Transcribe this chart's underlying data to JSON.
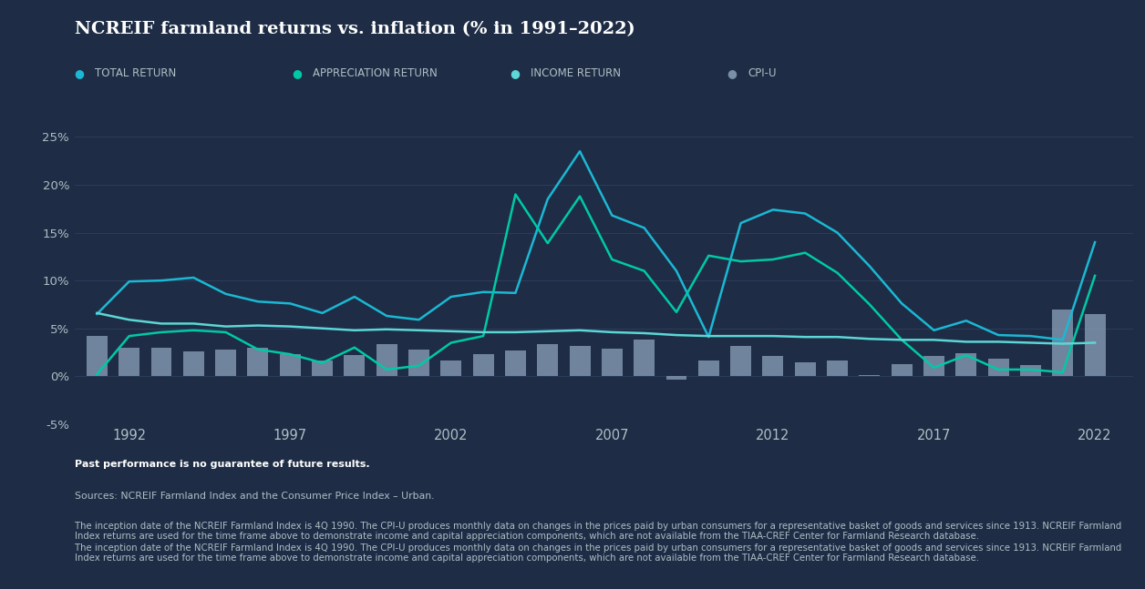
{
  "title": "NCREIF farmland returns vs. inflation (% in 1991–2022)",
  "background_color": "#1e2d45",
  "grid_color": "#2e4060",
  "text_color": "#ffffff",
  "legend_text_color": "#b0bec5",
  "years": [
    1991,
    1992,
    1993,
    1994,
    1995,
    1996,
    1997,
    1998,
    1999,
    2000,
    2001,
    2002,
    2003,
    2004,
    2005,
    2006,
    2007,
    2008,
    2009,
    2010,
    2011,
    2012,
    2013,
    2014,
    2015,
    2016,
    2017,
    2018,
    2019,
    2020,
    2021,
    2022
  ],
  "total_return": [
    6.5,
    9.9,
    10.0,
    10.3,
    8.6,
    7.8,
    7.6,
    6.6,
    8.3,
    6.3,
    5.9,
    8.3,
    8.8,
    8.7,
    18.5,
    23.5,
    16.8,
    15.5,
    11.0,
    4.1,
    16.0,
    17.4,
    17.0,
    15.0,
    11.5,
    7.6,
    4.8,
    5.8,
    4.3,
    4.2,
    3.8,
    14.0
  ],
  "appreciation_return": [
    0.2,
    4.2,
    4.6,
    4.8,
    4.6,
    2.8,
    2.3,
    1.4,
    3.0,
    0.7,
    1.1,
    3.5,
    4.2,
    19.0,
    13.9,
    18.8,
    12.2,
    11.0,
    6.7,
    12.6,
    12.0,
    12.2,
    12.9,
    10.8,
    7.5,
    3.8,
    0.9,
    2.2,
    0.7,
    0.7,
    0.4,
    10.5
  ],
  "income_return": [
    6.6,
    5.9,
    5.5,
    5.5,
    5.2,
    5.3,
    5.2,
    5.0,
    4.8,
    4.9,
    4.8,
    4.7,
    4.6,
    4.6,
    4.7,
    4.8,
    4.6,
    4.5,
    4.3,
    4.2,
    4.2,
    4.2,
    4.1,
    4.1,
    3.9,
    3.8,
    3.8,
    3.6,
    3.6,
    3.5,
    3.4,
    3.5
  ],
  "cpi_u": [
    4.2,
    3.0,
    3.0,
    2.6,
    2.8,
    3.0,
    2.3,
    1.6,
    2.2,
    3.4,
    2.8,
    1.6,
    2.3,
    2.7,
    3.4,
    3.2,
    2.9,
    3.8,
    -0.4,
    1.6,
    3.2,
    2.1,
    1.5,
    1.6,
    0.1,
    1.3,
    2.1,
    2.4,
    1.8,
    1.2,
    7.0,
    6.5
  ],
  "total_return_color": "#1bb8d4",
  "appreciation_return_color": "#00c9a7",
  "income_return_color": "#5cd6d6",
  "cpi_bar_color": "#7a8fa8",
  "ylim": [
    -5,
    27
  ],
  "yticks": [
    -5,
    0,
    5,
    10,
    15,
    20,
    25
  ],
  "ytick_labels": [
    "-5%",
    "0%",
    "5%",
    "10%",
    "15%",
    "20%",
    "25%"
  ],
  "xticks": [
    1992,
    1997,
    2002,
    2007,
    2012,
    2017,
    2022
  ],
  "note_bold": "Past performance is no guarantee of future results.",
  "note_source": "Sources: NCREIF Farmland Index and the Consumer Price Index – Urban.",
  "note_detail": "The inception date of the NCREIF Farmland Index is 4Q 1990. The CPI-U produces monthly data on changes in the prices paid by urban consumers for a representative basket of goods and services since 1913. NCREIF Farmland Index returns are used for the time frame above to demonstrate income and capital appreciation components, which are not available from the TIAA-CREF Center for Farmland Research database.",
  "legend_labels": [
    "TOTAL RETURN",
    "APPRECIATION RETURN",
    "INCOME RETURN",
    "CPI-U"
  ],
  "legend_colors": [
    "#1bb8d4",
    "#00c9a7",
    "#5cd6d6",
    "#7a8fa8"
  ]
}
